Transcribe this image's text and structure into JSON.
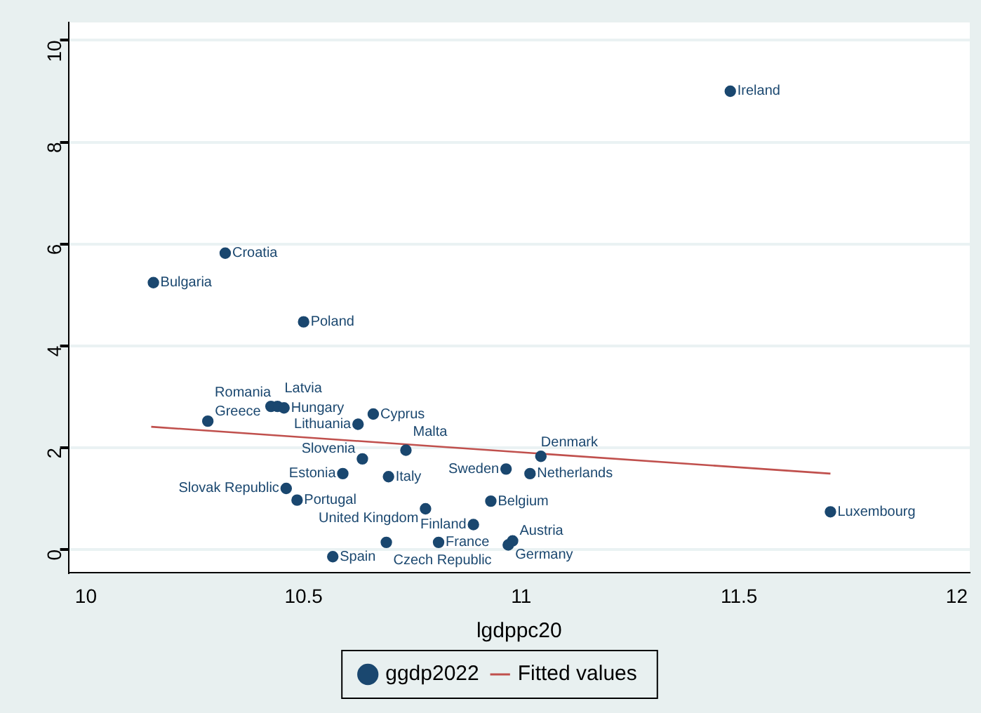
{
  "chart_data": {
    "type": "scatter",
    "xlabel": "lgdppc20",
    "xlim": [
      9.96,
      12.03
    ],
    "ylim": [
      -0.46,
      10.35
    ],
    "xticks": [
      10,
      10.5,
      11,
      11.5,
      12
    ],
    "yticks": [
      0,
      2,
      4,
      6,
      8,
      10
    ],
    "grid": "y",
    "legend": "bottom",
    "series": [
      {
        "name": "ggdp2022",
        "type": "scatter",
        "marker": "circle",
        "color": "#1a476f",
        "x": [
          11.48,
          10.32,
          10.155,
          10.5,
          10.28,
          10.425,
          10.44,
          10.455,
          10.66,
          10.625,
          10.735,
          10.635,
          10.59,
          10.695,
          10.46,
          10.485,
          10.78,
          10.93,
          10.89,
          10.69,
          10.81,
          10.98,
          10.97,
          10.567,
          11.045,
          10.965,
          11.02,
          11.71
        ],
        "values": [
          9.0,
          5.82,
          5.24,
          4.47,
          2.52,
          2.81,
          2.81,
          2.78,
          2.66,
          2.46,
          1.95,
          1.78,
          1.49,
          1.43,
          1.2,
          0.97,
          0.8,
          0.95,
          0.49,
          0.14,
          0.14,
          0.17,
          0.09,
          -0.14,
          1.83,
          1.58,
          1.49,
          0.74
        ]
      },
      {
        "name": "Fitted values",
        "type": "line",
        "color": "#c0504d",
        "x": [
          10.15,
          11.71
        ],
        "values": [
          2.41,
          1.49
        ]
      }
    ],
    "annotations": [
      {
        "text": "Ireland",
        "x": 11.48,
        "y": 9.0
      },
      {
        "text": "Croatia",
        "x": 10.32,
        "y": 5.82
      },
      {
        "text": "Bulgaria",
        "x": 10.155,
        "y": 5.24
      },
      {
        "text": "Poland",
        "x": 10.5,
        "y": 4.47
      },
      {
        "text": "Greece",
        "x": 10.28,
        "y": 2.52
      },
      {
        "text": "Romania",
        "x": 10.425,
        "y": 2.81
      },
      {
        "text": "Latvia",
        "x": 10.44,
        "y": 2.81
      },
      {
        "text": "Hungary",
        "x": 10.455,
        "y": 2.78
      },
      {
        "text": "Cyprus",
        "x": 10.66,
        "y": 2.66
      },
      {
        "text": "Lithuania",
        "x": 10.625,
        "y": 2.46
      },
      {
        "text": "Malta",
        "x": 10.735,
        "y": 1.95
      },
      {
        "text": "Slovenia",
        "x": 10.635,
        "y": 1.78
      },
      {
        "text": "Estonia",
        "x": 10.59,
        "y": 1.49
      },
      {
        "text": "Italy",
        "x": 10.695,
        "y": 1.43
      },
      {
        "text": "Slovak Republic",
        "x": 10.46,
        "y": 1.2
      },
      {
        "text": "Portugal",
        "x": 10.485,
        "y": 0.97
      },
      {
        "text": "United Kingdom",
        "x": 10.78,
        "y": 0.8
      },
      {
        "text": "Belgium",
        "x": 10.93,
        "y": 0.95
      },
      {
        "text": "Finland",
        "x": 10.89,
        "y": 0.49
      },
      {
        "text": "Czech Republic",
        "x": 10.69,
        "y": 0.14
      },
      {
        "text": "France",
        "x": 10.81,
        "y": 0.14
      },
      {
        "text": "Austria",
        "x": 10.98,
        "y": 0.17
      },
      {
        "text": "Germany",
        "x": 10.97,
        "y": 0.09
      },
      {
        "text": "Spain",
        "x": 10.567,
        "y": -0.14
      },
      {
        "text": "Denmark",
        "x": 11.045,
        "y": 1.83
      },
      {
        "text": "Sweden",
        "x": 10.965,
        "y": 1.58
      },
      {
        "text": "Netherlands",
        "x": 11.02,
        "y": 1.49
      },
      {
        "text": "Luxembourg",
        "x": 11.71,
        "y": 0.74
      }
    ]
  }
}
